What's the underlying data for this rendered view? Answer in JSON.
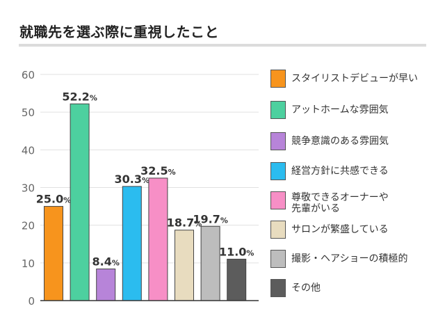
{
  "chart_data": {
    "type": "bar",
    "title": "就職先を選ぶ際に重視したこと",
    "categories": [
      "スタイリストデビューが早い",
      "アットホームな雰囲気",
      "競争意識のある雰囲気",
      "経営方針に共感できる",
      "尊敬できるオーナーや\n先輩がいる",
      "サロンが繁盛している",
      "撮影・ヘアショーの積極的",
      "その他"
    ],
    "values": [
      25.0,
      52.2,
      8.4,
      30.3,
      32.5,
      18.7,
      19.7,
      11.0
    ],
    "value_labels": [
      "25.0",
      "52.2",
      "8.4",
      "30.3",
      "32.5",
      "18.7",
      "19.7",
      "11.0"
    ],
    "value_unit": "%",
    "colors": [
      "#f7941d",
      "#4dd09f",
      "#b784d9",
      "#2bbcef",
      "#f78fc6",
      "#e8dcbf",
      "#bdbdbd",
      "#5c5c5c"
    ],
    "ylim": [
      0,
      60
    ],
    "yticks": [
      "0",
      "10",
      "20",
      "30",
      "40",
      "50",
      "60"
    ],
    "ytick_values": [
      0,
      10,
      20,
      30,
      40,
      50,
      60
    ],
    "grid": true,
    "legend": "right",
    "xlabel": "",
    "ylabel": ""
  }
}
